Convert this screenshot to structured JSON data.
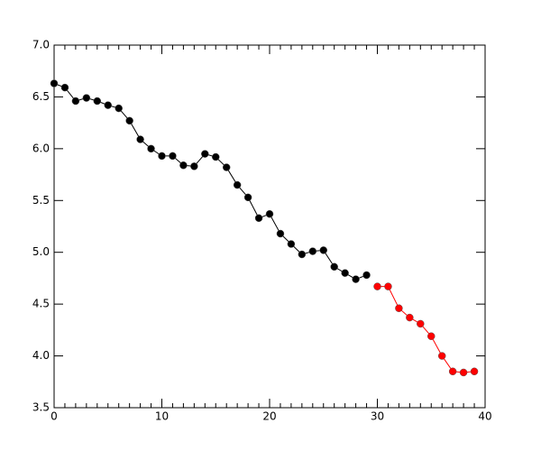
{
  "chart_data": {
    "type": "line",
    "series": [
      {
        "color": "#000000",
        "x": [
          0,
          1,
          2,
          3,
          4,
          5,
          6,
          7,
          8,
          9,
          10,
          11,
          12,
          13,
          14,
          15,
          16,
          17,
          18,
          19,
          20,
          21,
          22,
          23,
          24,
          25,
          26,
          27,
          28,
          29
        ],
        "values": [
          6.63,
          6.59,
          6.46,
          6.49,
          6.46,
          6.42,
          6.39,
          6.27,
          6.09,
          6.0,
          5.93,
          5.93,
          5.84,
          5.83,
          5.95,
          5.92,
          5.82,
          5.65,
          5.53,
          5.33,
          5.37,
          5.18,
          5.08,
          4.98,
          5.01,
          5.02,
          4.86,
          4.8,
          4.74,
          4.78
        ]
      },
      {
        "color": "#ff0000",
        "x": [
          30,
          31,
          32,
          33,
          34,
          35,
          36,
          37,
          38,
          39
        ],
        "values": [
          4.67,
          4.67,
          4.46,
          4.37,
          4.31,
          4.19,
          4.0,
          3.85,
          3.84,
          3.85
        ]
      }
    ],
    "xlim": [
      0,
      40
    ],
    "xticks": [
      0,
      10,
      20,
      30,
      40
    ],
    "xminorticks": [
      1,
      2,
      3,
      4,
      5,
      6,
      7,
      8,
      9,
      11,
      12,
      13,
      14,
      15,
      16,
      17,
      18,
      19,
      21,
      22,
      23,
      24,
      25,
      26,
      27,
      28,
      29,
      31,
      32,
      33,
      34,
      35,
      36,
      37,
      38,
      39
    ],
    "ylim": [
      3.5,
      7.0
    ],
    "yticks": [
      3.5,
      {
        "value": 4,
        "label": "4.0"
      },
      4.5,
      {
        "value": 5,
        "label": "5.0"
      },
      5.5,
      {
        "value": 6,
        "label": "6.0"
      },
      6.5,
      {
        "value": 7,
        "label": "7.0"
      }
    ]
  }
}
